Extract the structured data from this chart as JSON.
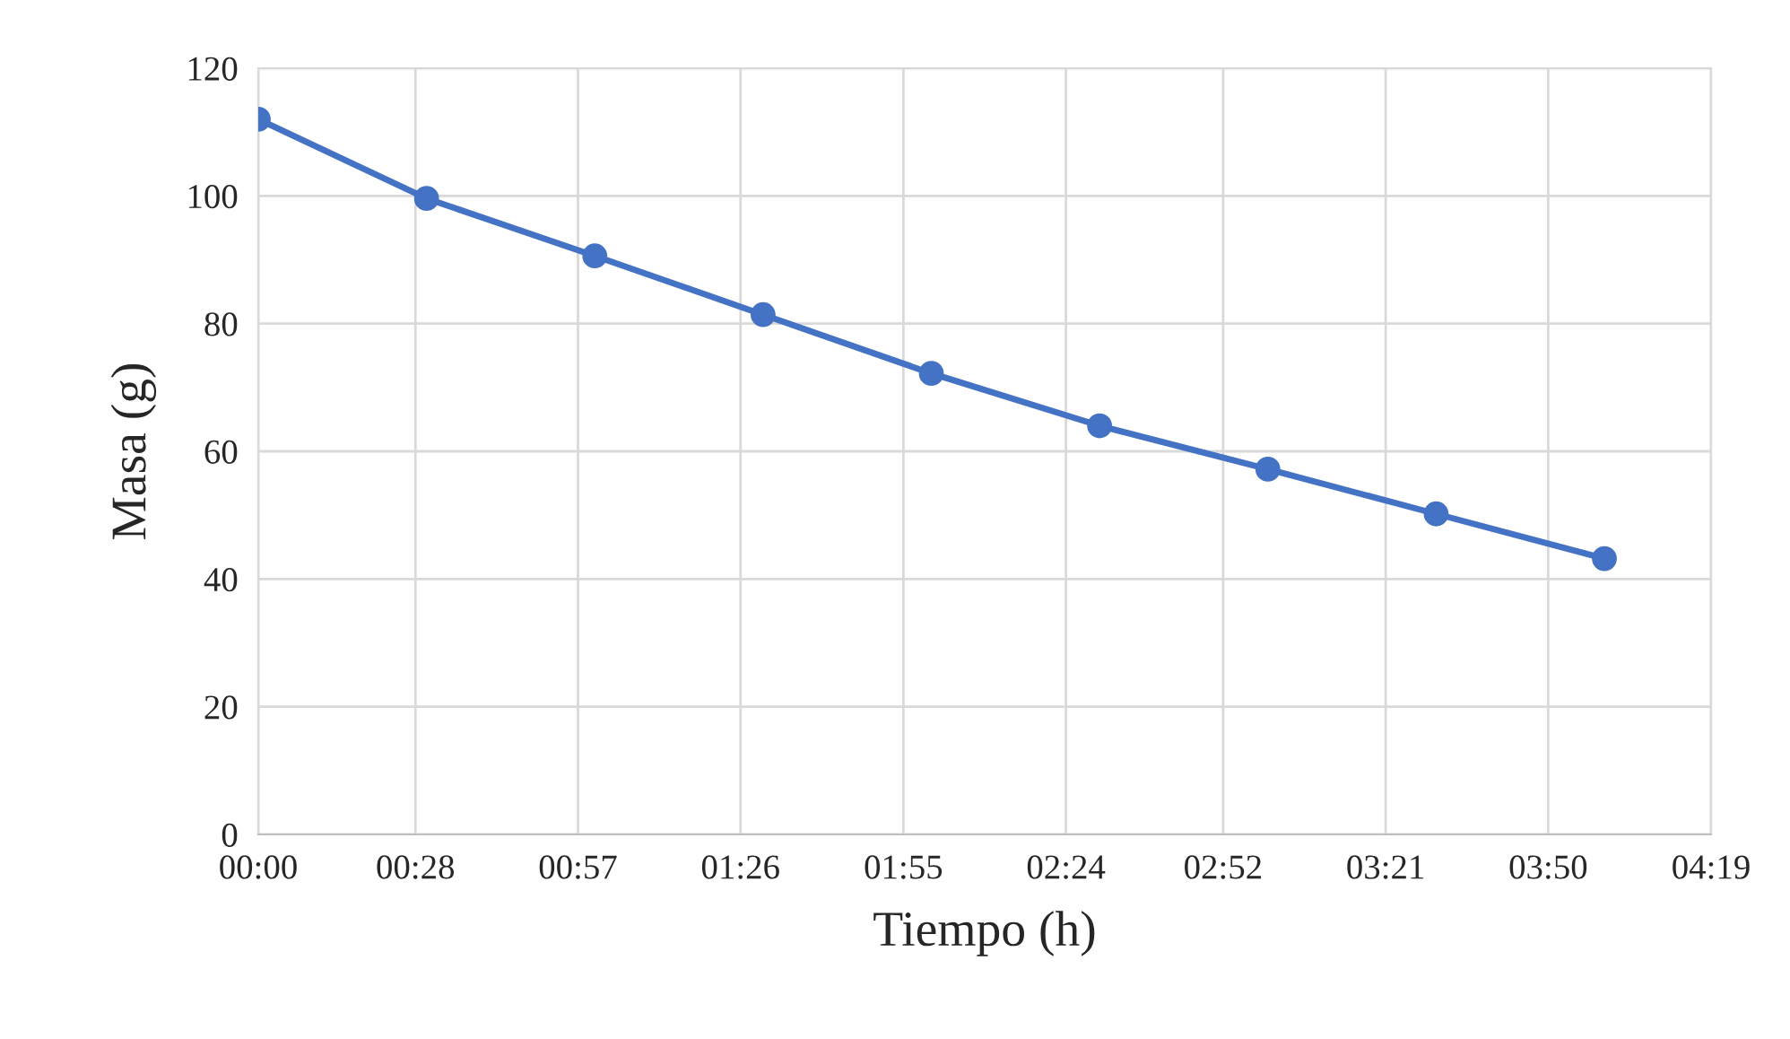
{
  "chart_data": {
    "type": "line",
    "xlabel": "Tiempo (h)",
    "ylabel": "Masa (g)",
    "x": [
      0,
      0.5,
      1,
      1.5,
      2,
      2.5,
      3,
      3.5,
      4
    ],
    "series": [
      {
        "color": "#4472c4",
        "values": [
          112,
          99.6,
          90.6,
          81.4,
          72.2,
          64,
          57.2,
          50.2,
          43.2
        ]
      }
    ],
    "xlim": [
      0,
      4.317
    ],
    "xticks": [
      {
        "value": 0,
        "label": "00:00"
      },
      {
        "value": 0.467,
        "label": "00:28"
      },
      {
        "value": 0.95,
        "label": "00:57"
      },
      {
        "value": 1.433,
        "label": "01:26"
      },
      {
        "value": 1.917,
        "label": "01:55"
      },
      {
        "value": 2.4,
        "label": "02:24"
      },
      {
        "value": 2.867,
        "label": "02:52"
      },
      {
        "value": 3.35,
        "label": "03:21"
      },
      {
        "value": 3.833,
        "label": "03:50"
      },
      {
        "value": 4.317,
        "label": "04:19"
      }
    ],
    "ylim": [
      0,
      120
    ],
    "yticks": [
      0,
      20,
      40,
      60,
      80,
      100,
      120
    ],
    "grid": true,
    "marker": "circle",
    "line_style": "solid",
    "legend": false
  }
}
